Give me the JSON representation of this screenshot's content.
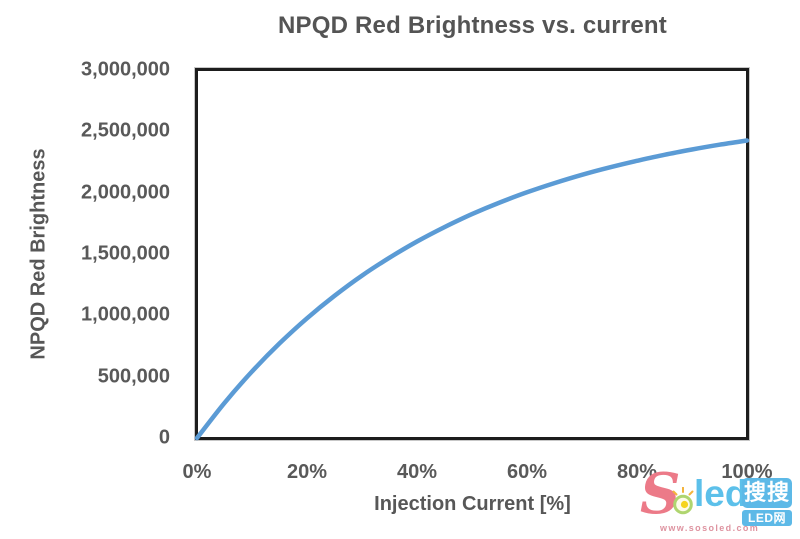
{
  "chart_data": {
    "type": "line",
    "title": "NPQD Red Brightness vs. current",
    "xlabel": "Injection Current [%]",
    "ylabel": "NPQD Red Brightness",
    "xlim": [
      0,
      100
    ],
    "ylim": [
      0,
      3000000
    ],
    "x_ticks": [
      "0%",
      "20%",
      "40%",
      "60%",
      "80%",
      "100%"
    ],
    "y_ticks": [
      "0",
      "500,000",
      "1,000,000",
      "1,500,000",
      "2,000,000",
      "2,500,000",
      "3,000,000"
    ],
    "y_tick_values": [
      0,
      500000,
      1000000,
      1500000,
      2000000,
      2500000,
      3000000
    ],
    "grid": false,
    "legend": false,
    "series": [
      {
        "name": "NPQD Red Brightness",
        "color": "#5B9BD5",
        "x": [
          0,
          5,
          10,
          15,
          20,
          25,
          30,
          35,
          40,
          45,
          50,
          55,
          60,
          65,
          70,
          75,
          80,
          85,
          90,
          95,
          100
        ],
        "values": [
          0,
          286000,
          542000,
          771000,
          976000,
          1159000,
          1324000,
          1470000,
          1602000,
          1719000,
          1825000,
          1919000,
          2003000,
          2078000,
          2146000,
          2206000,
          2260000,
          2309000,
          2352000,
          2391000,
          2425000
        ]
      }
    ]
  },
  "watermark": {
    "brand_s": "S",
    "brand_rest": "led",
    "badge_top": "搜搜",
    "badge_bottom": "LED网",
    "url": "www.sosoled.com"
  },
  "colors": {
    "curve_blue": "#5B9BD5",
    "text_gray": "#595959",
    "frame_black": "#1D1D1D",
    "background": "#FFFFFF",
    "logo_pink": "#EC7A88",
    "logo_blue": "#5CC0EA",
    "badge_blue": "#5DB9E7"
  }
}
